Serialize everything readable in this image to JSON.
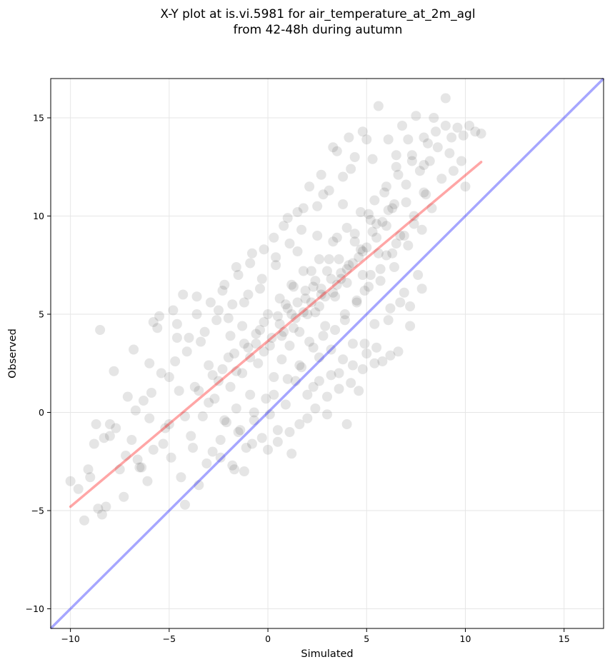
{
  "chart_data": {
    "type": "scatter",
    "title": "X-Y plot at is.vi.5981 for air_temperature_at_2m_agl",
    "subtitle": "from 42-48h during autumn",
    "xlabel": "Simulated",
    "ylabel": "Observed",
    "xlim": [
      -11,
      17
    ],
    "ylim": [
      -11,
      17
    ],
    "xticks": [
      -10,
      -5,
      0,
      5,
      10,
      15
    ],
    "yticks": [
      -10,
      -5,
      0,
      5,
      10,
      15
    ],
    "xtick_labels": [
      "−10",
      "−5",
      "0",
      "5",
      "10",
      "15"
    ],
    "ytick_labels": [
      "−10",
      "−5",
      "0",
      "5",
      "10",
      "15"
    ],
    "grid": true,
    "legend": "none",
    "point_color": "#000000",
    "point_opacity": 0.1,
    "regression_line": {
      "color": "#ff0000",
      "opacity": 0.35,
      "x": [
        -10,
        10.8
      ],
      "y": [
        -4.8,
        12.75
      ]
    },
    "identity_line": {
      "color": "#0000ff",
      "opacity": 0.35,
      "x": [
        -11,
        17
      ],
      "y": [
        -11,
        17
      ]
    },
    "points": [
      [
        -10.0,
        -3.5
      ],
      [
        -9.6,
        -3.9
      ],
      [
        -9.3,
        -5.5
      ],
      [
        -9.1,
        -2.9
      ],
      [
        -9.0,
        -3.3
      ],
      [
        -8.7,
        -0.6
      ],
      [
        -8.6,
        -4.9
      ],
      [
        -8.5,
        4.2
      ],
      [
        -8.4,
        -5.2
      ],
      [
        -8.2,
        -4.8
      ],
      [
        -8.3,
        -1.3
      ],
      [
        -8.0,
        -1.2
      ],
      [
        -7.7,
        -0.8
      ],
      [
        -7.5,
        -2.9
      ],
      [
        -7.3,
        -4.3
      ],
      [
        -7.1,
        0.8
      ],
      [
        -6.9,
        -1.4
      ],
      [
        -6.8,
        3.2
      ],
      [
        -6.6,
        -2.4
      ],
      [
        -6.4,
        -2.8
      ],
      [
        -6.3,
        0.6
      ],
      [
        -6.1,
        -3.5
      ],
      [
        -6.0,
        -0.3
      ],
      [
        -5.8,
        4.6
      ],
      [
        -5.6,
        4.3
      ],
      [
        -5.5,
        4.9
      ],
      [
        -5.3,
        -1.6
      ],
      [
        -5.2,
        -0.8
      ],
      [
        -5.0,
        1.8
      ],
      [
        -4.9,
        -2.3
      ],
      [
        -4.8,
        5.2
      ],
      [
        -4.6,
        4.5
      ],
      [
        -4.5,
        1.1
      ],
      [
        -4.4,
        -3.3
      ],
      [
        -4.3,
        6.0
      ],
      [
        -4.2,
        -4.7
      ],
      [
        -4.0,
        3.8
      ],
      [
        -3.9,
        -1.2
      ],
      [
        -3.7,
        1.3
      ],
      [
        -3.6,
        5.9
      ],
      [
        -3.5,
        -3.7
      ],
      [
        -3.3,
        -0.2
      ],
      [
        -3.2,
        4.1
      ],
      [
        -3.0,
        2.4
      ],
      [
        -2.8,
        -2.0
      ],
      [
        -2.7,
        0.7
      ],
      [
        -2.5,
        5.2
      ],
      [
        -2.4,
        -1.4
      ],
      [
        -2.3,
        2.2
      ],
      [
        -2.2,
        6.5
      ],
      [
        -2.1,
        -0.5
      ],
      [
        -2.0,
        4.8
      ],
      [
        -1.9,
        1.3
      ],
      [
        -1.8,
        -2.7
      ],
      [
        -1.7,
        3.0
      ],
      [
        -1.6,
        0.2
      ],
      [
        -1.5,
        7.0
      ],
      [
        -1.4,
        -0.9
      ],
      [
        -1.3,
        2.0
      ],
      [
        -1.2,
        5.6
      ],
      [
        -1.1,
        -1.8
      ],
      [
        -1.0,
        3.3
      ],
      [
        -0.9,
        0.9
      ],
      [
        -0.8,
        8.1
      ],
      [
        -0.7,
        -0.4
      ],
      [
        -0.6,
        4.0
      ],
      [
        -0.5,
        2.5
      ],
      [
        -0.4,
        6.3
      ],
      [
        -0.3,
        -1.3
      ],
      [
        -0.2,
        3.1
      ],
      [
        -0.1,
        0.7
      ],
      [
        0.0,
        5.0
      ],
      [
        0.1,
        -0.1
      ],
      [
        0.2,
        3.8
      ],
      [
        0.3,
        1.8
      ],
      [
        0.4,
        7.5
      ],
      [
        0.5,
        -0.9
      ],
      [
        0.6,
        4.5
      ],
      [
        0.7,
        2.7
      ],
      [
        0.8,
        9.5
      ],
      [
        0.9,
        0.4
      ],
      [
        1.0,
        5.3
      ],
      [
        1.1,
        3.4
      ],
      [
        1.2,
        -2.1
      ],
      [
        1.3,
        6.4
      ],
      [
        1.4,
        1.6
      ],
      [
        1.5,
        8.2
      ],
      [
        1.6,
        4.1
      ],
      [
        1.7,
        2.3
      ],
      [
        1.8,
        10.4
      ],
      [
        1.9,
        5.8
      ],
      [
        2.0,
        -0.3
      ],
      [
        2.1,
        3.6
      ],
      [
        2.2,
        7.2
      ],
      [
        2.3,
        1.3
      ],
      [
        2.4,
        5.1
      ],
      [
        2.5,
        9.0
      ],
      [
        2.6,
        2.8
      ],
      [
        2.7,
        6.3
      ],
      [
        2.8,
        11.1
      ],
      [
        2.9,
        4.4
      ],
      [
        3.0,
        0.8
      ],
      [
        3.1,
        7.8
      ],
      [
        3.2,
        3.2
      ],
      [
        3.3,
        13.5
      ],
      [
        3.4,
        5.9
      ],
      [
        3.5,
        8.9
      ],
      [
        3.6,
        2.0
      ],
      [
        3.7,
        6.8
      ],
      [
        3.8,
        10.6
      ],
      [
        3.9,
        4.7
      ],
      [
        4.0,
        -0.6
      ],
      [
        4.1,
        7.5
      ],
      [
        4.2,
        12.4
      ],
      [
        4.3,
        3.5
      ],
      [
        4.4,
        9.1
      ],
      [
        4.5,
        5.6
      ],
      [
        4.6,
        1.1
      ],
      [
        4.7,
        8.3
      ],
      [
        4.8,
        14.3
      ],
      [
        4.9,
        6.2
      ],
      [
        5.0,
        3.0
      ],
      [
        5.1,
        10.1
      ],
      [
        5.2,
        7.0
      ],
      [
        5.3,
        12.9
      ],
      [
        5.4,
        4.5
      ],
      [
        5.5,
        9.6
      ],
      [
        5.6,
        15.6
      ],
      [
        5.7,
        6.7
      ],
      [
        5.8,
        2.6
      ],
      [
        5.9,
        11.2
      ],
      [
        6.0,
        8.0
      ],
      [
        6.1,
        13.9
      ],
      [
        6.2,
        5.3
      ],
      [
        6.3,
        10.4
      ],
      [
        6.4,
        7.4
      ],
      [
        6.5,
        12.5
      ],
      [
        6.6,
        3.1
      ],
      [
        6.7,
        9.0
      ],
      [
        6.8,
        14.6
      ],
      [
        6.9,
        6.1
      ],
      [
        7.0,
        11.6
      ],
      [
        7.1,
        8.5
      ],
      [
        7.2,
        4.4
      ],
      [
        7.3,
        13.1
      ],
      [
        7.4,
        10.0
      ],
      [
        7.5,
        15.1
      ],
      [
        7.6,
        7.0
      ],
      [
        7.7,
        12.3
      ],
      [
        7.8,
        9.3
      ],
      [
        7.9,
        14.0
      ],
      [
        8.0,
        11.1
      ],
      [
        8.2,
        12.8
      ],
      [
        8.4,
        15.0
      ],
      [
        8.6,
        13.5
      ],
      [
        8.8,
        11.9
      ],
      [
        9.0,
        16.0
      ],
      [
        9.2,
        13.2
      ],
      [
        9.4,
        12.3
      ],
      [
        9.6,
        14.5
      ],
      [
        9.8,
        12.8
      ],
      [
        10.0,
        11.5
      ],
      [
        10.2,
        14.6
      ],
      [
        10.5,
        14.3
      ],
      [
        10.8,
        14.2
      ],
      [
        -1.9,
        3.9
      ],
      [
        -1.3,
        4.4
      ],
      [
        -0.6,
        3.5
      ],
      [
        -0.2,
        4.6
      ],
      [
        0.5,
        4.9
      ],
      [
        0.9,
        5.5
      ],
      [
        1.4,
        4.8
      ],
      [
        1.9,
        6.2
      ],
      [
        2.4,
        6.7
      ],
      [
        2.9,
        5.9
      ],
      [
        3.5,
        6.5
      ],
      [
        4.0,
        7.3
      ],
      [
        4.6,
        7.9
      ],
      [
        5.0,
        8.4
      ],
      [
        5.5,
        8.9
      ],
      [
        6.0,
        9.5
      ],
      [
        -2.5,
        1.6
      ],
      [
        -1.6,
        2.1
      ],
      [
        -0.9,
        2.8
      ],
      [
        0.1,
        3.4
      ],
      [
        0.7,
        3.9
      ],
      [
        1.3,
        4.3
      ],
      [
        1.8,
        5.1
      ],
      [
        2.2,
        5.6
      ],
      [
        2.7,
        6.0
      ],
      [
        3.2,
        6.8
      ],
      [
        3.7,
        7.1
      ],
      [
        4.3,
        7.6
      ],
      [
        4.8,
        8.2
      ],
      [
        5.3,
        9.2
      ],
      [
        5.8,
        9.7
      ],
      [
        6.4,
        10.6
      ],
      [
        -3.0,
        0.5
      ],
      [
        -2.2,
        -0.4
      ],
      [
        -1.5,
        -1.0
      ],
      [
        -0.7,
        0.0
      ],
      [
        0.3,
        0.9
      ],
      [
        1.0,
        1.7
      ],
      [
        1.6,
        2.4
      ],
      [
        2.3,
        3.3
      ],
      [
        2.8,
        3.9
      ],
      [
        3.4,
        4.2
      ],
      [
        3.9,
        5.0
      ],
      [
        4.5,
        5.7
      ],
      [
        5.1,
        6.4
      ],
      [
        5.7,
        7.3
      ],
      [
        6.3,
        8.1
      ],
      [
        6.9,
        9.0
      ],
      [
        -6.5,
        -2.8
      ],
      [
        -5.8,
        -1.9
      ],
      [
        -5.0,
        -0.6
      ],
      [
        -4.2,
        -0.2
      ],
      [
        -3.5,
        1.1
      ],
      [
        -2.8,
        1.9
      ],
      [
        -2.0,
        2.8
      ],
      [
        -1.2,
        3.5
      ],
      [
        -0.4,
        4.2
      ],
      [
        0.6,
        5.8
      ],
      [
        1.2,
        6.5
      ],
      [
        1.8,
        7.2
      ],
      [
        2.6,
        7.8
      ],
      [
        3.3,
        8.7
      ],
      [
        4.0,
        9.4
      ],
      [
        4.7,
        10.2
      ],
      [
        5.4,
        10.8
      ],
      [
        6.0,
        11.5
      ],
      [
        6.6,
        12.1
      ],
      [
        7.3,
        12.8
      ],
      [
        8.1,
        13.7
      ],
      [
        9.0,
        14.6
      ],
      [
        -8.8,
        -1.6
      ],
      [
        -8.0,
        -0.6
      ],
      [
        -7.2,
        -2.2
      ],
      [
        -6.7,
        0.1
      ],
      [
        -5.9,
        1.0
      ],
      [
        -5.4,
        2.0
      ],
      [
        -4.7,
        2.6
      ],
      [
        -4.1,
        3.1
      ],
      [
        -3.4,
        3.6
      ],
      [
        -2.6,
        4.7
      ],
      [
        -1.8,
        5.5
      ],
      [
        -1.0,
        6.0
      ],
      [
        -0.3,
        6.8
      ],
      [
        0.4,
        7.9
      ],
      [
        1.1,
        8.6
      ],
      [
        1.7,
        9.3
      ],
      [
        2.5,
        10.5
      ],
      [
        3.1,
        11.3
      ],
      [
        3.8,
        12.0
      ],
      [
        4.4,
        13.0
      ],
      [
        2.0,
        0.9
      ],
      [
        2.6,
        1.6
      ],
      [
        3.2,
        1.9
      ],
      [
        3.8,
        2.7
      ],
      [
        4.3,
        2.4
      ],
      [
        4.9,
        3.5
      ],
      [
        5.5,
        3.3
      ],
      [
        6.1,
        4.7
      ],
      [
        6.7,
        5.6
      ],
      [
        7.2,
        5.4
      ],
      [
        7.8,
        6.3
      ],
      [
        0.5,
        -1.5
      ],
      [
        1.1,
        -1.0
      ],
      [
        1.6,
        -0.6
      ],
      [
        2.4,
        0.2
      ],
      [
        3.0,
        -0.1
      ],
      [
        3.6,
        1.2
      ],
      [
        4.2,
        1.5
      ],
      [
        4.8,
        2.2
      ],
      [
        5.4,
        2.5
      ],
      [
        6.2,
        2.9
      ],
      [
        -3.8,
        -1.8
      ],
      [
        -3.1,
        -2.6
      ],
      [
        -2.4,
        -2.3
      ],
      [
        -1.7,
        -2.9
      ],
      [
        -1.2,
        -3.0
      ],
      [
        -0.8,
        -1.6
      ],
      [
        0.0,
        -1.9
      ],
      [
        -7.8,
        2.1
      ],
      [
        -6.0,
        2.5
      ],
      [
        -4.6,
        3.8
      ],
      [
        -3.6,
        5.0
      ],
      [
        -2.9,
        5.6
      ],
      [
        -2.3,
        6.2
      ],
      [
        -1.6,
        7.4
      ],
      [
        -0.9,
        7.6
      ],
      [
        -0.2,
        8.3
      ],
      [
        0.3,
        8.9
      ],
      [
        1.0,
        9.9
      ],
      [
        1.5,
        10.2
      ],
      [
        2.1,
        11.5
      ],
      [
        2.7,
        12.1
      ],
      [
        3.5,
        13.3
      ],
      [
        4.1,
        14.0
      ],
      [
        5.0,
        13.9
      ],
      [
        6.5,
        13.1
      ],
      [
        7.1,
        13.9
      ],
      [
        7.9,
        12.6
      ],
      [
        8.5,
        14.3
      ],
      [
        9.3,
        14.0
      ],
      [
        9.9,
        14.1
      ],
      [
        0.8,
        4.1
      ],
      [
        1.2,
        5.0
      ],
      [
        1.5,
        5.6
      ],
      [
        2.0,
        5.0
      ],
      [
        2.3,
        6.4
      ],
      [
        2.6,
        5.4
      ],
      [
        3.0,
        7.2
      ],
      [
        3.3,
        6.1
      ],
      [
        3.6,
        7.8
      ],
      [
        4.0,
        6.6
      ],
      [
        4.4,
        8.7
      ],
      [
        4.8,
        7.0
      ],
      [
        5.2,
        9.8
      ],
      [
        5.6,
        8.1
      ],
      [
        6.1,
        10.3
      ],
      [
        6.5,
        8.6
      ],
      [
        7.0,
        10.7
      ],
      [
        7.4,
        9.6
      ],
      [
        7.9,
        11.2
      ],
      [
        8.3,
        10.4
      ]
    ]
  }
}
